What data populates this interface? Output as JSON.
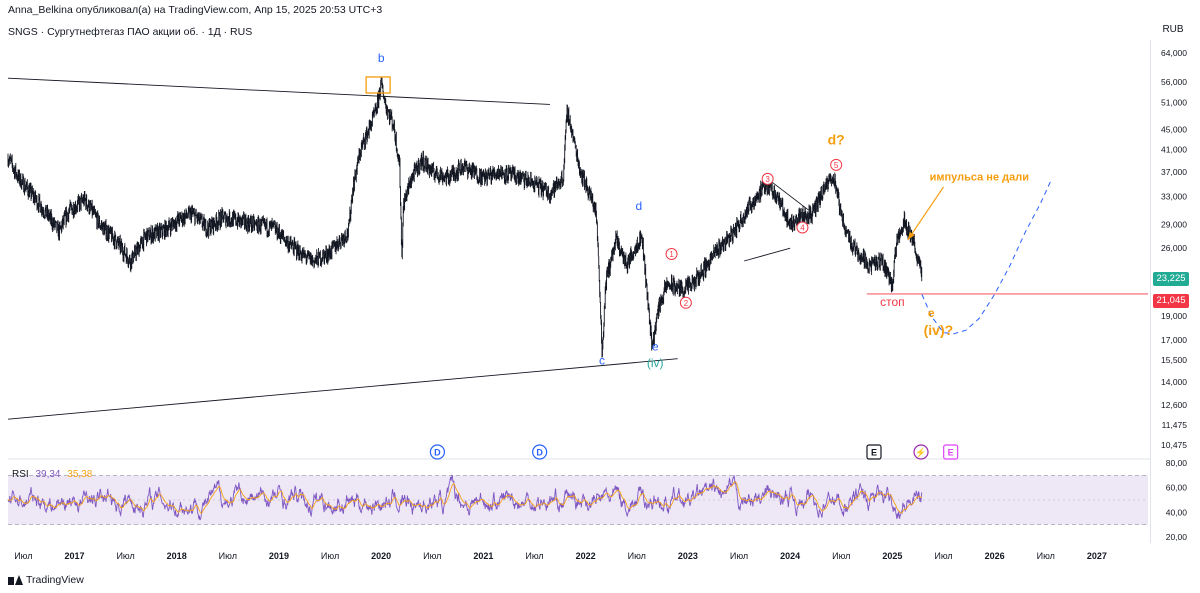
{
  "header": {
    "publisher_line": "Anna_Belkina опубликовал(а) на TradingView.com, Апр 15, 2025 20:53 UTC+3",
    "symbol_line": "SNGS · Сургутнефтегаз ПАО акции об. · 1Д · RUS",
    "currency_button": "RUB"
  },
  "footer": {
    "brand": "TradingView"
  },
  "colors": {
    "candle": "#131722",
    "wave_blue": "#2962ff",
    "wave_orange": "#f59d0d",
    "wave_green": "#26a69a",
    "wave_red": "#f23645",
    "rsi_line": "#7e57c2",
    "rsi_ma": "#f7a21b",
    "rsi_band": "#ede7f6",
    "projection": "#2962ff"
  },
  "chart_data": [
    {
      "type": "line",
      "name": "price",
      "y_scale": "log",
      "y_axis_currency": "RUB",
      "y_ticks": [
        "64,000",
        "56,000",
        "51,000",
        "45,000",
        "41,000",
        "37,000",
        "33,000",
        "29,000",
        "26,000",
        "19,000",
        "17,000",
        "15,500",
        "14,000",
        "12,600",
        "11,475",
        "10,475"
      ],
      "x_ticks": [
        "Июл",
        "2017",
        "Июл",
        "2018",
        "Июл",
        "2019",
        "Июл",
        "2020",
        "Июл",
        "2021",
        "Июл",
        "2022",
        "Июл",
        "2023",
        "Июл",
        "2024",
        "Июл",
        "2025",
        "Июл",
        "2026",
        "Июл",
        "2027"
      ],
      "x_tick_dates": [
        2016.5,
        2017.0,
        2017.5,
        2018.0,
        2018.5,
        2019.0,
        2019.5,
        2020.0,
        2020.5,
        2021.0,
        2021.5,
        2022.0,
        2022.5,
        2023.0,
        2023.5,
        2024.0,
        2024.5,
        2025.0,
        2025.5,
        2026.0,
        2026.5,
        2027.0
      ],
      "last_price": "23,225",
      "stop_price": "21,045",
      "price_path": [
        [
          2016.35,
          39.5
        ],
        [
          2016.45,
          36.0
        ],
        [
          2016.6,
          33.0
        ],
        [
          2016.75,
          30.0
        ],
        [
          2016.85,
          28.0
        ],
        [
          2016.95,
          31.0
        ],
        [
          2017.1,
          32.5
        ],
        [
          2017.25,
          29.0
        ],
        [
          2017.4,
          27.0
        ],
        [
          2017.55,
          24.5
        ],
        [
          2017.7,
          27.5
        ],
        [
          2017.85,
          28.0
        ],
        [
          2018.0,
          29.5
        ],
        [
          2018.15,
          30.5
        ],
        [
          2018.3,
          28.5
        ],
        [
          2018.45,
          30.0
        ],
        [
          2018.6,
          29.5
        ],
        [
          2018.75,
          29.0
        ],
        [
          2018.95,
          28.5
        ],
        [
          2019.1,
          26.5
        ],
        [
          2019.25,
          25.0
        ],
        [
          2019.35,
          24.5
        ],
        [
          2019.5,
          25.5
        ],
        [
          2019.6,
          27.0
        ],
        [
          2019.68,
          28.0
        ],
        [
          2019.72,
          34.0
        ],
        [
          2019.8,
          41.0
        ],
        [
          2019.88,
          45.0
        ],
        [
          2019.95,
          49.0
        ],
        [
          2020.0,
          55.5
        ],
        [
          2020.05,
          50.0
        ],
        [
          2020.12,
          46.0
        ],
        [
          2020.18,
          38.0
        ],
        [
          2020.2,
          25.0
        ],
        [
          2020.22,
          32.0
        ],
        [
          2020.3,
          36.0
        ],
        [
          2020.4,
          39.0
        ],
        [
          2020.5,
          37.0
        ],
        [
          2020.65,
          36.0
        ],
        [
          2020.8,
          38.0
        ],
        [
          2021.0,
          36.0
        ],
        [
          2021.15,
          37.0
        ],
        [
          2021.35,
          36.0
        ],
        [
          2021.5,
          35.0
        ],
        [
          2021.65,
          33.5
        ],
        [
          2021.78,
          36.0
        ],
        [
          2021.82,
          49.0
        ],
        [
          2021.88,
          43.0
        ],
        [
          2021.95,
          37.0
        ],
        [
          2022.1,
          31.0
        ],
        [
          2022.16,
          15.8
        ],
        [
          2022.2,
          22.5
        ],
        [
          2022.3,
          27.0
        ],
        [
          2022.4,
          24.0
        ],
        [
          2022.5,
          26.5
        ],
        [
          2022.55,
          27.5
        ],
        [
          2022.6,
          21.0
        ],
        [
          2022.65,
          16.5
        ],
        [
          2022.72,
          20.0
        ],
        [
          2022.8,
          22.0
        ],
        [
          2022.95,
          21.5
        ],
        [
          2023.05,
          22.0
        ],
        [
          2023.15,
          23.5
        ],
        [
          2023.3,
          26.0
        ],
        [
          2023.45,
          28.0
        ],
        [
          2023.6,
          31.5
        ],
        [
          2023.72,
          34.0
        ],
        [
          2023.8,
          35.0
        ],
        [
          2023.9,
          32.0
        ],
        [
          2024.0,
          29.0
        ],
        [
          2024.1,
          30.0
        ],
        [
          2024.22,
          30.5
        ],
        [
          2024.3,
          33.0
        ],
        [
          2024.42,
          36.5
        ],
        [
          2024.5,
          30.0
        ],
        [
          2024.6,
          26.5
        ],
        [
          2024.7,
          25.0
        ],
        [
          2024.78,
          24.0
        ],
        [
          2024.9,
          24.5
        ],
        [
          2025.0,
          22.0
        ],
        [
          2025.05,
          27.5
        ],
        [
          2025.12,
          29.5
        ],
        [
          2025.2,
          27.0
        ],
        [
          2025.26,
          24.0
        ],
        [
          2025.29,
          23.225
        ]
      ],
      "projection_path": [
        [
          2025.29,
          21.0
        ],
        [
          2025.38,
          19.0
        ],
        [
          2025.5,
          17.6
        ],
        [
          2025.6,
          17.5
        ],
        [
          2025.72,
          17.8
        ],
        [
          2025.85,
          18.8
        ],
        [
          2026.0,
          21.0
        ],
        [
          2026.15,
          24.0
        ],
        [
          2026.3,
          28.0
        ],
        [
          2026.45,
          32.0
        ],
        [
          2026.55,
          35.5
        ]
      ],
      "trendlines": [
        {
          "from": [
            2016.35,
            57.0
          ],
          "to": [
            2021.65,
            50.5
          ],
          "color": "#131722"
        },
        {
          "from": [
            2016.35,
            11.8
          ],
          "to": [
            2022.9,
            15.6
          ],
          "color": "#131722"
        },
        {
          "from": [
            2023.55,
            24.5
          ],
          "to": [
            2024.0,
            26.0
          ],
          "color": "#131722"
        },
        {
          "from": [
            2023.82,
            35.3
          ],
          "to": [
            2024.18,
            31.0
          ],
          "color": "#131722"
        },
        {
          "from": [
            2024.75,
            21.045
          ],
          "to": [
            2027.5,
            21.045
          ],
          "color": "#f23645"
        },
        {
          "from": [
            2025.5,
            34.5
          ],
          "to": [
            2025.15,
            27.0
          ],
          "color": "#f59d0d"
        }
      ],
      "wave_labels": [
        {
          "text": "b",
          "date": 2020.0,
          "price": 61.5,
          "color": "#2962ff"
        },
        {
          "text": "c",
          "date": 2022.16,
          "price": 15.2,
          "color": "#2962ff"
        },
        {
          "text": "d",
          "date": 2022.52,
          "price": 31.0,
          "color": "#2962ff"
        },
        {
          "text": "e",
          "date": 2022.68,
          "price": 16.2,
          "color": "#2962ff"
        },
        {
          "text": "(iv)",
          "date": 2022.68,
          "price": 15.0,
          "color": "#26a69a"
        },
        {
          "text": "d?",
          "date": 2024.45,
          "price": 42.0,
          "color": "#f59d0d"
        },
        {
          "text": "импульса не дали",
          "date": 2025.85,
          "price": 35.5,
          "color": "#f59d0d"
        },
        {
          "text": "стоп",
          "date": 2025.0,
          "price": 19.9,
          "color": "#f23645"
        },
        {
          "text": "e",
          "date": 2025.38,
          "price": 18.9,
          "color": "#f59d0d"
        },
        {
          "text": "(iv)?",
          "date": 2025.45,
          "price": 17.4,
          "color": "#f59d0d"
        }
      ],
      "circled_waves": [
        {
          "text": "1",
          "date": 2022.84,
          "price": 25.3
        },
        {
          "text": "2",
          "date": 2022.98,
          "price": 20.2
        },
        {
          "text": "3",
          "date": 2023.78,
          "price": 35.8
        },
        {
          "text": "4",
          "date": 2024.12,
          "price": 28.6
        },
        {
          "text": "5",
          "date": 2024.45,
          "price": 38.2
        }
      ],
      "events": [
        {
          "text": "D",
          "date": 2020.55,
          "type": "dividend"
        },
        {
          "text": "D",
          "date": 2021.55,
          "type": "dividend"
        },
        {
          "text": "E",
          "date": 2024.82,
          "type": "earnings"
        },
        {
          "text": "⚡",
          "date": 2025.28,
          "type": "split"
        },
        {
          "text": "E",
          "date": 2025.57,
          "type": "earnings"
        }
      ]
    },
    {
      "type": "line",
      "name": "RSI",
      "label": "RSI",
      "value": "39,34",
      "ma_value": "35,38",
      "ylim": [
        20,
        80
      ],
      "y_ticks": [
        "80,00",
        "60,00",
        "40,00",
        "20,00"
      ],
      "bands": [
        70,
        30
      ],
      "midline": 50
    }
  ]
}
